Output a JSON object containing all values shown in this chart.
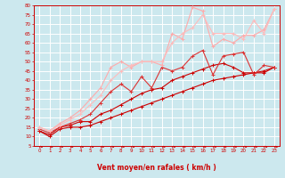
{
  "xlabel": "Vent moyen/en rafales ( km/h )",
  "bg_color": "#cce8ee",
  "grid_color": "#ffffff",
  "xlim": [
    -0.5,
    23.5
  ],
  "ylim": [
    5,
    80
  ],
  "xticks": [
    0,
    1,
    2,
    3,
    4,
    5,
    6,
    7,
    8,
    9,
    10,
    11,
    12,
    13,
    14,
    15,
    16,
    17,
    18,
    19,
    20,
    21,
    22,
    23
  ],
  "yticks": [
    5,
    10,
    15,
    20,
    25,
    30,
    35,
    40,
    45,
    50,
    55,
    60,
    65,
    70,
    75,
    80
  ],
  "series": [
    {
      "x": [
        0,
        1,
        2,
        3,
        4,
        5,
        6,
        7,
        8,
        9,
        10,
        11,
        12,
        13,
        14,
        15,
        16,
        17,
        18,
        19,
        20,
        21,
        22,
        23
      ],
      "y": [
        13,
        10,
        14,
        15,
        15,
        16,
        18,
        20,
        22,
        24,
        26,
        28,
        30,
        32,
        34,
        36,
        38,
        40,
        41,
        42,
        43,
        44,
        45,
        47
      ],
      "color": "#cc0000",
      "lw": 0.8,
      "marker": "+"
    },
    {
      "x": [
        0,
        1,
        2,
        3,
        4,
        5,
        6,
        7,
        8,
        9,
        10,
        11,
        12,
        13,
        14,
        15,
        16,
        17,
        18,
        19,
        20,
        21,
        22,
        23
      ],
      "y": [
        13,
        11,
        15,
        16,
        18,
        18,
        22,
        24,
        27,
        30,
        33,
        35,
        36,
        40,
        42,
        44,
        46,
        48,
        49,
        47,
        44,
        44,
        44,
        47
      ],
      "color": "#cc0000",
      "lw": 0.8,
      "marker": "+"
    },
    {
      "x": [
        0,
        1,
        2,
        3,
        4,
        5,
        6,
        7,
        8,
        9,
        10,
        11,
        12,
        13,
        14,
        15,
        16,
        17,
        18,
        19,
        20,
        21,
        22,
        23
      ],
      "y": [
        14,
        12,
        15,
        17,
        19,
        22,
        28,
        34,
        38,
        34,
        42,
        36,
        47,
        45,
        47,
        53,
        56,
        43,
        53,
        54,
        55,
        43,
        48,
        47
      ],
      "color": "#dd3333",
      "lw": 0.8,
      "marker": "+"
    },
    {
      "x": [
        0,
        1,
        2,
        3,
        4,
        5,
        6,
        7,
        8,
        9,
        10,
        11,
        12,
        13,
        14,
        15,
        16,
        17,
        18,
        19,
        20,
        21,
        22,
        23
      ],
      "y": [
        15,
        13,
        17,
        20,
        24,
        30,
        36,
        47,
        50,
        47,
        50,
        50,
        48,
        65,
        62,
        79,
        77,
        58,
        62,
        60,
        64,
        64,
        67,
        78
      ],
      "color": "#ffaaaa",
      "lw": 0.8,
      "marker": "+"
    },
    {
      "x": [
        0,
        1,
        2,
        3,
        4,
        5,
        6,
        7,
        8,
        9,
        10,
        11,
        12,
        13,
        14,
        15,
        16,
        17,
        18,
        19,
        20,
        21,
        22,
        23
      ],
      "y": [
        15,
        13,
        16,
        19,
        22,
        27,
        32,
        40,
        45,
        48,
        50,
        50,
        50,
        60,
        65,
        68,
        75,
        65,
        65,
        65,
        62,
        72,
        65,
        78
      ],
      "color": "#ffbbbb",
      "lw": 0.8,
      "marker": "+"
    }
  ],
  "arrow_color": "#cc0000"
}
